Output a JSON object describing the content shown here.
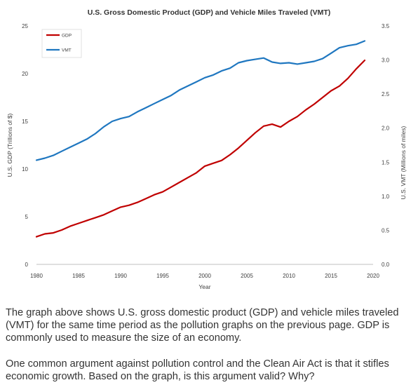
{
  "chart_data": {
    "type": "line",
    "title": "U.S. Gross Domestic Product (GDP) and Vehicle Miles Traveled (VMT)",
    "xlabel": "Year",
    "ylabel_left": "U.S. GDP (Trillions of $)",
    "ylabel_right": "U.S. VMT (Millions of miles)",
    "xlim": [
      1980,
      2020
    ],
    "ylim_left": [
      0,
      25
    ],
    "ylim_right": [
      0,
      3.5
    ],
    "x_ticks": [
      1980,
      1985,
      1990,
      1995,
      2000,
      2005,
      2010,
      2015,
      2020
    ],
    "y_ticks_left": [
      "0",
      "5",
      "10",
      "15",
      "20",
      "25"
    ],
    "y_ticks_right": [
      "0.0",
      "0.5",
      "1.0",
      "1.5",
      "2.0",
      "2.5",
      "3.0",
      "3.5"
    ],
    "legend_position": "top-left",
    "grid": false,
    "series": [
      {
        "name": "GDP",
        "axis": "left",
        "color": "#c00000",
        "x": [
          1980,
          1981,
          1982,
          1983,
          1984,
          1985,
          1986,
          1987,
          1988,
          1989,
          1990,
          1991,
          1992,
          1993,
          1994,
          1995,
          1996,
          1997,
          1998,
          1999,
          2000,
          2001,
          2002,
          2003,
          2004,
          2005,
          2006,
          2007,
          2008,
          2009,
          2010,
          2011,
          2012,
          2013,
          2014,
          2015,
          2016,
          2017,
          2018,
          2019
        ],
        "values": [
          2.9,
          3.2,
          3.3,
          3.6,
          4.0,
          4.3,
          4.6,
          4.9,
          5.2,
          5.6,
          6.0,
          6.2,
          6.5,
          6.9,
          7.3,
          7.6,
          8.1,
          8.6,
          9.1,
          9.6,
          10.3,
          10.6,
          10.9,
          11.5,
          12.2,
          13.0,
          13.8,
          14.5,
          14.7,
          14.4,
          15.0,
          15.5,
          16.2,
          16.8,
          17.5,
          18.2,
          18.7,
          19.5,
          20.5,
          21.4
        ]
      },
      {
        "name": "VMT",
        "axis": "right",
        "color": "#1f77c0",
        "x": [
          1980,
          1981,
          1982,
          1983,
          1984,
          1985,
          1986,
          1987,
          1988,
          1989,
          1990,
          1991,
          1992,
          1993,
          1994,
          1995,
          1996,
          1997,
          1998,
          1999,
          2000,
          2001,
          2002,
          2003,
          2004,
          2005,
          2006,
          2007,
          2008,
          2009,
          2010,
          2011,
          2012,
          2013,
          2014,
          2015,
          2016,
          2017,
          2018,
          2019
        ],
        "values": [
          1.53,
          1.56,
          1.6,
          1.66,
          1.72,
          1.78,
          1.84,
          1.92,
          2.02,
          2.1,
          2.14,
          2.17,
          2.24,
          2.3,
          2.36,
          2.42,
          2.48,
          2.56,
          2.62,
          2.68,
          2.74,
          2.78,
          2.84,
          2.88,
          2.96,
          2.99,
          3.01,
          3.03,
          2.97,
          2.95,
          2.96,
          2.94,
          2.96,
          2.98,
          3.02,
          3.1,
          3.18,
          3.21,
          3.23,
          3.28
        ]
      }
    ]
  },
  "caption": {
    "paragraph_1": "The graph above shows U.S. gross domestic product (GDP) and vehicle miles traveled (VMT) for the same time period as the pollution graphs on the previous page. GDP is commonly used to measure the size of an economy.",
    "paragraph_2": "One common argument against pollution control and the Clean Air Act is that it stifles economic growth. Based on the graph, is this argument valid? Why?"
  }
}
